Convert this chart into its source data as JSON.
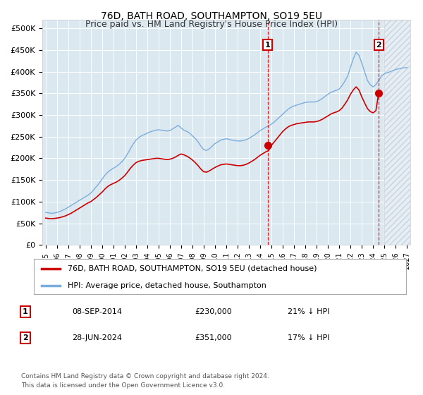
{
  "title": "76D, BATH ROAD, SOUTHAMPTON, SO19 5EU",
  "subtitle": "Price paid vs. HM Land Registry's House Price Index (HPI)",
  "legend_line1": "76D, BATH ROAD, SOUTHAMPTON, SO19 5EU (detached house)",
  "legend_line2": "HPI: Average price, detached house, Southampton",
  "annotation1_date": "08-SEP-2014",
  "annotation1_price": "£230,000",
  "annotation1_hpi": "21% ↓ HPI",
  "annotation2_date": "28-JUN-2024",
  "annotation2_price": "£351,000",
  "annotation2_hpi": "17% ↓ HPI",
  "footer": "Contains HM Land Registry data © Crown copyright and database right 2024.\nThis data is licensed under the Open Government Licence v3.0.",
  "property_color": "#cc0000",
  "hpi_color": "#7aaddc",
  "hatch_color": "#c8d8e8",
  "background_color": "#dce8f0",
  "sale1_x": 2014.67,
  "sale1_y": 230000,
  "sale2_x": 2024.5,
  "sale2_y": 351000,
  "hatch_start": 2025.0,
  "xlim_left": 1994.7,
  "xlim_right": 2027.3,
  "ylim": [
    0,
    520000
  ],
  "yticks": [
    0,
    50000,
    100000,
    150000,
    200000,
    250000,
    300000,
    350000,
    400000,
    450000,
    500000
  ],
  "ytick_labels": [
    "£0",
    "£50K",
    "£100K",
    "£150K",
    "£200K",
    "£250K",
    "£300K",
    "£350K",
    "£400K",
    "£450K",
    "£500K"
  ],
  "hpi_years": [
    1995.0,
    1995.25,
    1995.5,
    1995.75,
    1996.0,
    1996.25,
    1996.5,
    1996.75,
    1997.0,
    1997.25,
    1997.5,
    1997.75,
    1998.0,
    1998.25,
    1998.5,
    1998.75,
    1999.0,
    1999.25,
    1999.5,
    1999.75,
    2000.0,
    2000.25,
    2000.5,
    2000.75,
    2001.0,
    2001.25,
    2001.5,
    2001.75,
    2002.0,
    2002.25,
    2002.5,
    2002.75,
    2003.0,
    2003.25,
    2003.5,
    2003.75,
    2004.0,
    2004.25,
    2004.5,
    2004.75,
    2005.0,
    2005.25,
    2005.5,
    2005.75,
    2006.0,
    2006.25,
    2006.5,
    2006.75,
    2007.0,
    2007.25,
    2007.5,
    2007.75,
    2008.0,
    2008.25,
    2008.5,
    2008.75,
    2009.0,
    2009.25,
    2009.5,
    2009.75,
    2010.0,
    2010.25,
    2010.5,
    2010.75,
    2011.0,
    2011.25,
    2011.5,
    2011.75,
    2012.0,
    2012.25,
    2012.5,
    2012.75,
    2013.0,
    2013.25,
    2013.5,
    2013.75,
    2014.0,
    2014.25,
    2014.5,
    2014.75,
    2015.0,
    2015.25,
    2015.5,
    2015.75,
    2016.0,
    2016.25,
    2016.5,
    2016.75,
    2017.0,
    2017.25,
    2017.5,
    2017.75,
    2018.0,
    2018.25,
    2018.5,
    2018.75,
    2019.0,
    2019.25,
    2019.5,
    2019.75,
    2020.0,
    2020.25,
    2020.5,
    2020.75,
    2021.0,
    2021.25,
    2021.5,
    2021.75,
    2022.0,
    2022.25,
    2022.5,
    2022.75,
    2023.0,
    2023.25,
    2023.5,
    2023.75,
    2024.0,
    2024.25,
    2024.5,
    2024.75,
    2025.0,
    2025.5,
    2026.0,
    2026.5,
    2027.0
  ],
  "hpi_values": [
    75000,
    74000,
    73000,
    73500,
    75000,
    77000,
    80000,
    83000,
    87000,
    91000,
    95000,
    99000,
    103000,
    107000,
    111000,
    115000,
    120000,
    127000,
    135000,
    143000,
    152000,
    161000,
    168000,
    173000,
    177000,
    181000,
    186000,
    192000,
    200000,
    210000,
    222000,
    233000,
    242000,
    248000,
    252000,
    255000,
    258000,
    261000,
    263000,
    265000,
    266000,
    265000,
    264000,
    263000,
    264000,
    268000,
    272000,
    276000,
    270000,
    265000,
    262000,
    258000,
    252000,
    246000,
    238000,
    228000,
    220000,
    218000,
    222000,
    228000,
    234000,
    238000,
    242000,
    244000,
    245000,
    244000,
    242000,
    241000,
    240000,
    240000,
    241000,
    243000,
    246000,
    250000,
    254000,
    259000,
    264000,
    268000,
    272000,
    275000,
    279000,
    284000,
    290000,
    296000,
    302000,
    308000,
    314000,
    318000,
    321000,
    323000,
    325000,
    327000,
    329000,
    330000,
    330000,
    330000,
    331000,
    334000,
    338000,
    343000,
    348000,
    352000,
    355000,
    357000,
    360000,
    368000,
    378000,
    390000,
    410000,
    430000,
    445000,
    438000,
    420000,
    400000,
    380000,
    370000,
    365000,
    370000,
    380000,
    390000,
    395000,
    400000,
    405000,
    408000,
    410000
  ],
  "prop_years": [
    1995.0,
    1995.25,
    1995.5,
    1995.75,
    1996.0,
    1996.25,
    1996.5,
    1996.75,
    1997.0,
    1997.25,
    1997.5,
    1997.75,
    1998.0,
    1998.25,
    1998.5,
    1998.75,
    1999.0,
    1999.25,
    1999.5,
    1999.75,
    2000.0,
    2000.25,
    2000.5,
    2000.75,
    2001.0,
    2001.25,
    2001.5,
    2001.75,
    2002.0,
    2002.25,
    2002.5,
    2002.75,
    2003.0,
    2003.25,
    2003.5,
    2003.75,
    2004.0,
    2004.25,
    2004.5,
    2004.75,
    2005.0,
    2005.25,
    2005.5,
    2005.75,
    2006.0,
    2006.25,
    2006.5,
    2006.75,
    2007.0,
    2007.25,
    2007.5,
    2007.75,
    2008.0,
    2008.25,
    2008.5,
    2008.75,
    2009.0,
    2009.25,
    2009.5,
    2009.75,
    2010.0,
    2010.25,
    2010.5,
    2010.75,
    2011.0,
    2011.25,
    2011.5,
    2011.75,
    2012.0,
    2012.25,
    2012.5,
    2012.75,
    2013.0,
    2013.25,
    2013.5,
    2013.75,
    2014.0,
    2014.25,
    2014.5,
    2014.75,
    2015.0,
    2015.25,
    2015.5,
    2015.75,
    2016.0,
    2016.25,
    2016.5,
    2016.75,
    2017.0,
    2017.25,
    2017.5,
    2017.75,
    2018.0,
    2018.25,
    2018.5,
    2018.75,
    2019.0,
    2019.25,
    2019.5,
    2019.75,
    2020.0,
    2020.25,
    2020.5,
    2020.75,
    2021.0,
    2021.25,
    2021.5,
    2021.75,
    2022.0,
    2022.25,
    2022.5,
    2022.75,
    2023.0,
    2023.25,
    2023.5,
    2023.75,
    2024.0,
    2024.25,
    2024.5
  ],
  "prop_values": [
    62000,
    61000,
    60500,
    61000,
    62000,
    63000,
    65000,
    67000,
    70000,
    73000,
    77000,
    81000,
    85000,
    89000,
    93000,
    97000,
    100000,
    105000,
    110000,
    116000,
    122000,
    129000,
    135000,
    139000,
    142000,
    145000,
    149000,
    154000,
    160000,
    168000,
    177000,
    184000,
    190000,
    193000,
    195000,
    196000,
    197000,
    198000,
    199000,
    200000,
    200000,
    199000,
    198000,
    197000,
    198000,
    200000,
    203000,
    207000,
    210000,
    208000,
    205000,
    201000,
    196000,
    190000,
    183000,
    175000,
    169000,
    168000,
    171000,
    175000,
    179000,
    182000,
    185000,
    186000,
    187000,
    186000,
    185000,
    184000,
    183000,
    183000,
    184000,
    186000,
    189000,
    193000,
    197000,
    202000,
    207000,
    211000,
    215000,
    218000,
    230000,
    238000,
    246000,
    254000,
    262000,
    268000,
    273000,
    276000,
    278000,
    280000,
    281000,
    282000,
    283000,
    284000,
    284000,
    284000,
    285000,
    287000,
    290000,
    294000,
    298000,
    302000,
    305000,
    307000,
    310000,
    316000,
    325000,
    335000,
    348000,
    358000,
    365000,
    358000,
    342000,
    328000,
    315000,
    308000,
    305000,
    310000,
    351000
  ]
}
